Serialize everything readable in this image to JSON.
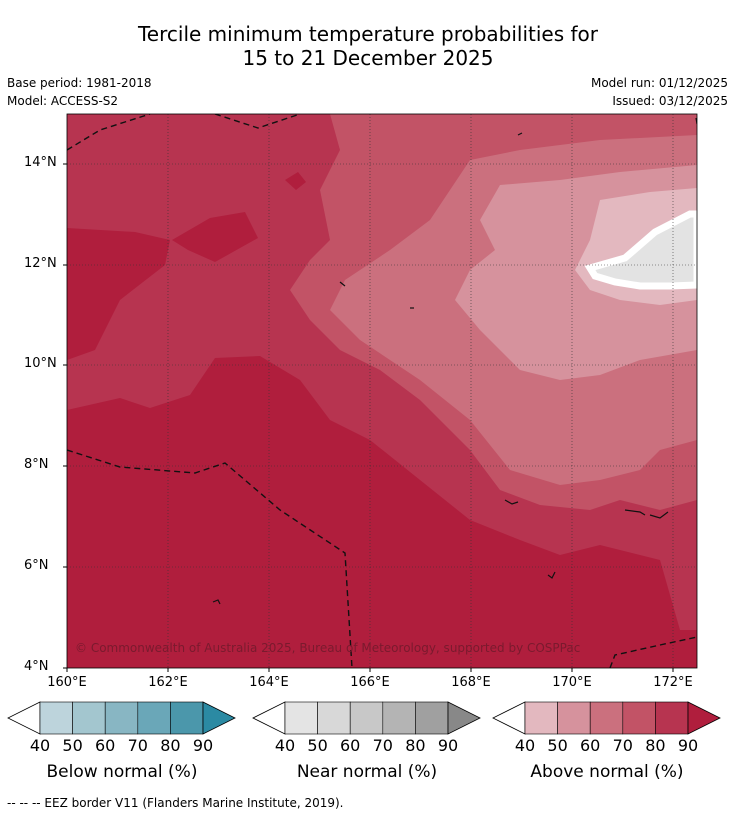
{
  "title_line1": "Tercile minimum temperature probabilities for",
  "title_line2": "15 to 21 December 2025",
  "base_period": "Base period: 1981-2018",
  "model": "Model: ACCESS-S2",
  "model_run": "Model run: 01/12/2025",
  "issued": "Issued: 03/12/2025",
  "lat_labels": [
    "14°N",
    "12°N",
    "10°N",
    "8°N",
    "6°N",
    "4°N"
  ],
  "lon_labels": [
    "160°E",
    "162°E",
    "164°E",
    "166°E",
    "168°E",
    "170°E",
    "172°E"
  ],
  "copyright": "© Commonwealth of Australia 2025, Bureau of Meteorology, supported by COSPPac",
  "colorbars": [
    {
      "label": "Below normal (%)",
      "ticks": [
        "40",
        "50",
        "60",
        "70",
        "80",
        "90"
      ],
      "colors": [
        "#ffffff",
        "#bdd4dc",
        "#a3c6cf",
        "#88b6c3",
        "#6aa7b8",
        "#4b97ab",
        "#2b8aa3"
      ]
    },
    {
      "label": "Near normal (%)",
      "ticks": [
        "40",
        "50",
        "60",
        "70",
        "80",
        "90"
      ],
      "colors": [
        "#ffffff",
        "#e4e4e4",
        "#d8d8d8",
        "#c8c8c8",
        "#b4b4b4",
        "#a0a0a0",
        "#888888"
      ]
    },
    {
      "label": "Above normal (%)",
      "ticks": [
        "40",
        "50",
        "60",
        "70",
        "80",
        "90"
      ],
      "colors": [
        "#ffffff",
        "#e3b8bf",
        "#d6929d",
        "#cb707e",
        "#c25366",
        "#b73450",
        "#b01e3d"
      ]
    }
  ],
  "footnote": "--  --  -- EEZ border V11 (Flanders Marine Institute, 2019)."
}
